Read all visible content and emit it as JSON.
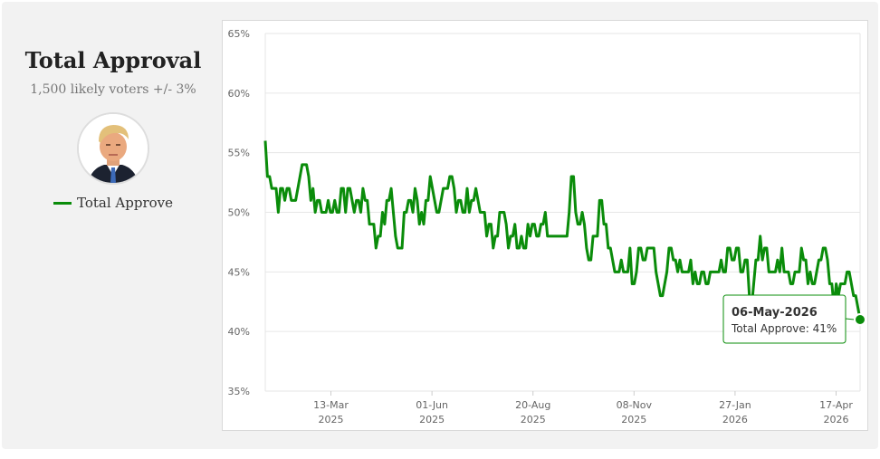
{
  "sidebar": {
    "title": "Total Approval",
    "subtitle": "1,500 likely voters +/- 3%",
    "legend_label": "Total Approve"
  },
  "colors": {
    "series": "#0a8c0a",
    "tooltip_border": "#0a8c0a",
    "grid": "#e6e6e6",
    "axis_text": "#666666"
  },
  "tooltip": {
    "date": "06-May-2026",
    "text": "Total Approve: 41%"
  },
  "chart_data": {
    "type": "line",
    "title": "Total Approval",
    "subtitle": "1,500 likely voters +/- 3%",
    "xlabel": "",
    "ylabel": "",
    "ylim": [
      35,
      65
    ],
    "y_ticks": [
      "35%",
      "40%",
      "45%",
      "50%",
      "55%",
      "60%",
      "65%"
    ],
    "x_ticks": [
      {
        "line1": "13-Mar",
        "line2": "2025",
        "date": "2025-03-13"
      },
      {
        "line1": "01-Jun",
        "line2": "2025",
        "date": "2025-06-01"
      },
      {
        "line1": "20-Aug",
        "line2": "2025",
        "date": "2025-08-20"
      },
      {
        "line1": "08-Nov",
        "line2": "2025",
        "date": "2025-11-08"
      },
      {
        "line1": "27-Jan",
        "line2": "2026",
        "date": "2026-01-27"
      },
      {
        "line1": "17-Apr",
        "line2": "2026",
        "date": "2026-04-17"
      }
    ],
    "grid": true,
    "legend": "left sidebar",
    "series": [
      {
        "name": "Total Approve",
        "date_range": [
          "2025-01-20",
          "2026-05-06"
        ],
        "values": [
          56,
          53,
          53,
          52,
          52,
          52,
          50,
          52,
          52,
          51,
          52,
          52,
          51,
          51,
          51,
          52,
          53,
          54,
          54,
          54,
          53,
          51,
          52,
          50,
          51,
          51,
          50,
          50,
          50,
          51,
          50,
          50,
          51,
          50,
          50,
          52,
          52,
          50,
          52,
          52,
          51,
          50,
          51,
          51,
          50,
          52,
          51,
          51,
          49,
          49,
          49,
          47,
          48,
          48,
          50,
          49,
          51,
          51,
          52,
          50,
          48,
          47,
          47,
          47,
          50,
          50,
          51,
          51,
          50,
          52,
          51,
          49,
          50,
          49,
          51,
          51,
          53,
          52,
          51,
          50,
          50,
          51,
          52,
          52,
          52,
          53,
          53,
          52,
          50,
          51,
          51,
          50,
          50,
          52,
          50,
          51,
          51,
          52,
          51,
          50,
          50,
          50,
          48,
          49,
          49,
          47,
          48,
          48,
          50,
          50,
          50,
          49,
          47,
          48,
          48,
          49,
          47,
          47,
          48,
          47,
          47,
          49,
          48,
          49,
          49,
          48,
          48,
          49,
          49,
          50,
          48,
          48,
          48,
          48,
          48,
          48,
          48,
          48,
          48,
          48,
          50,
          53,
          53,
          50,
          49,
          49,
          50,
          49,
          47,
          46,
          46,
          48,
          48,
          48,
          51,
          51,
          49,
          49,
          47,
          47,
          46,
          45,
          45,
          45,
          46,
          45,
          45,
          45,
          47,
          44,
          44,
          45,
          47,
          47,
          46,
          46,
          47,
          47,
          47,
          47,
          45,
          44,
          43,
          43,
          44,
          45,
          47,
          47,
          46,
          46,
          45,
          46,
          45,
          45,
          45,
          45,
          46,
          44,
          45,
          44,
          44,
          45,
          45,
          44,
          44,
          45,
          45,
          45,
          45,
          45,
          46,
          45,
          45,
          47,
          47,
          46,
          46,
          47,
          47,
          45,
          45,
          46,
          46,
          43,
          42,
          44,
          46,
          46,
          48,
          46,
          47,
          47,
          45,
          45,
          45,
          45,
          46,
          45,
          47,
          45,
          45,
          45,
          44,
          44,
          45,
          45,
          45,
          47,
          46,
          46,
          44,
          45,
          44,
          44,
          45,
          46,
          46,
          47,
          47,
          46,
          44,
          44,
          42,
          44,
          43,
          44,
          44,
          44,
          45,
          45,
          44,
          43,
          43,
          42,
          41
        ]
      }
    ]
  }
}
